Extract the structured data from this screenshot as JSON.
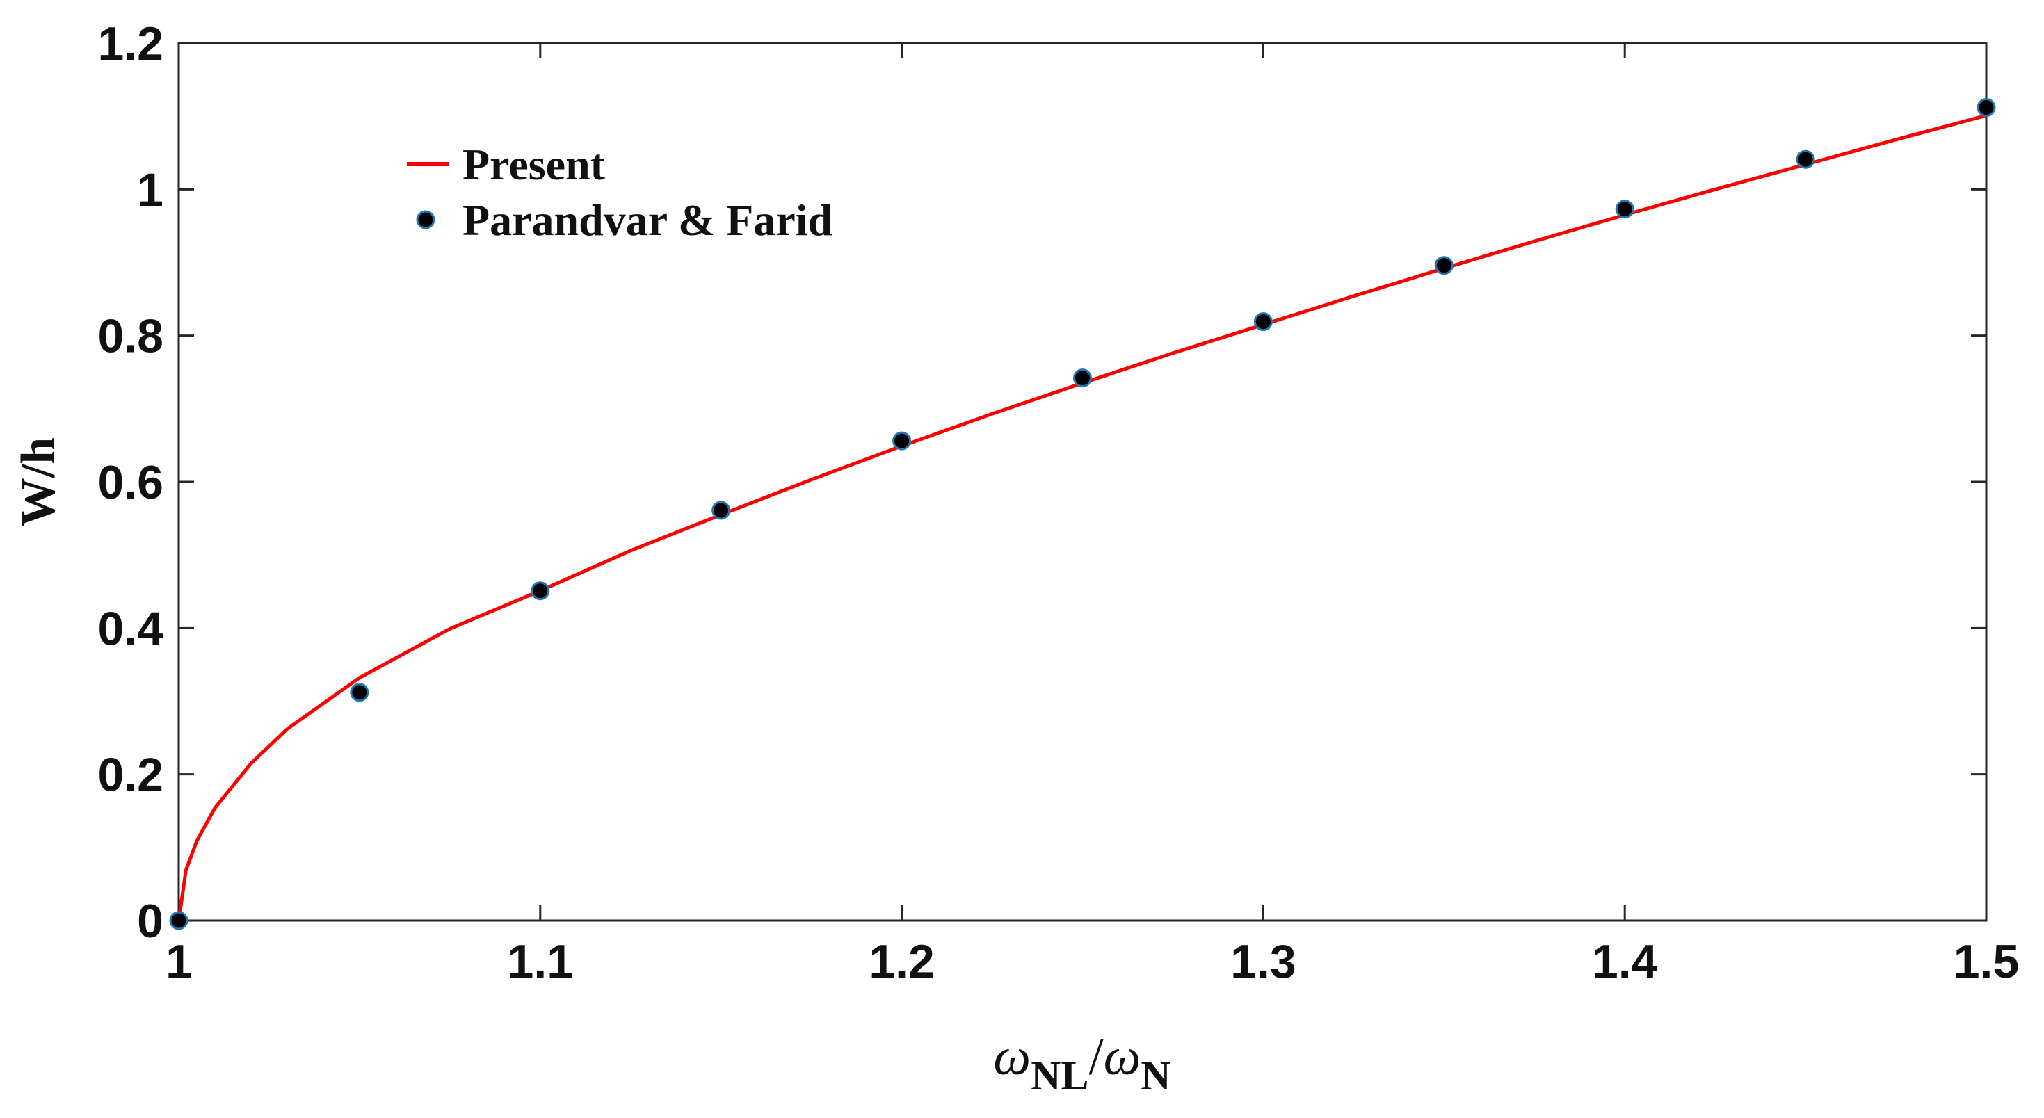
{
  "chart_data": {
    "type": "line",
    "xlabel": {
      "numerator_symbol": "ω",
      "numerator_sub": "NL",
      "separator": "/",
      "denominator_symbol": "ω",
      "denominator_sub": "N"
    },
    "ylabel": "W/h",
    "xlim": [
      1,
      1.5
    ],
    "ylim": [
      0,
      1.2
    ],
    "xticks": [
      "1",
      "1.1",
      "1.2",
      "1.3",
      "1.4",
      "1.5"
    ],
    "yticks": [
      "0",
      "0.2",
      "0.4",
      "0.6",
      "0.8",
      "1",
      "1.2"
    ],
    "grid": false,
    "legend_position": "top-left",
    "series": [
      {
        "name": "Present",
        "style": "line",
        "color": "#ff0000",
        "x": [
          1.0,
          1.002,
          1.005,
          1.01,
          1.02,
          1.03,
          1.05,
          1.075,
          1.1,
          1.125,
          1.15,
          1.175,
          1.2,
          1.225,
          1.25,
          1.275,
          1.3,
          1.325,
          1.35,
          1.375,
          1.4,
          1.425,
          1.45,
          1.475,
          1.5
        ],
        "y": [
          0.0,
          0.069,
          0.109,
          0.154,
          0.215,
          0.262,
          0.332,
          0.399,
          0.451,
          0.506,
          0.555,
          0.603,
          0.649,
          0.693,
          0.735,
          0.776,
          0.815,
          0.854,
          0.892,
          0.929,
          0.965,
          1.0,
          1.034,
          1.068,
          1.101
        ]
      },
      {
        "name": "Parandvar & Farid",
        "style": "marker",
        "color": "#000000",
        "edge_color": "#1f77b4",
        "x": [
          1.0,
          1.05,
          1.1,
          1.15,
          1.2,
          1.25,
          1.3,
          1.35,
          1.4,
          1.45,
          1.5
        ],
        "y": [
          0.0,
          0.312,
          0.451,
          0.561,
          0.656,
          0.742,
          0.819,
          0.896,
          0.973,
          1.041,
          1.112
        ]
      }
    ]
  }
}
